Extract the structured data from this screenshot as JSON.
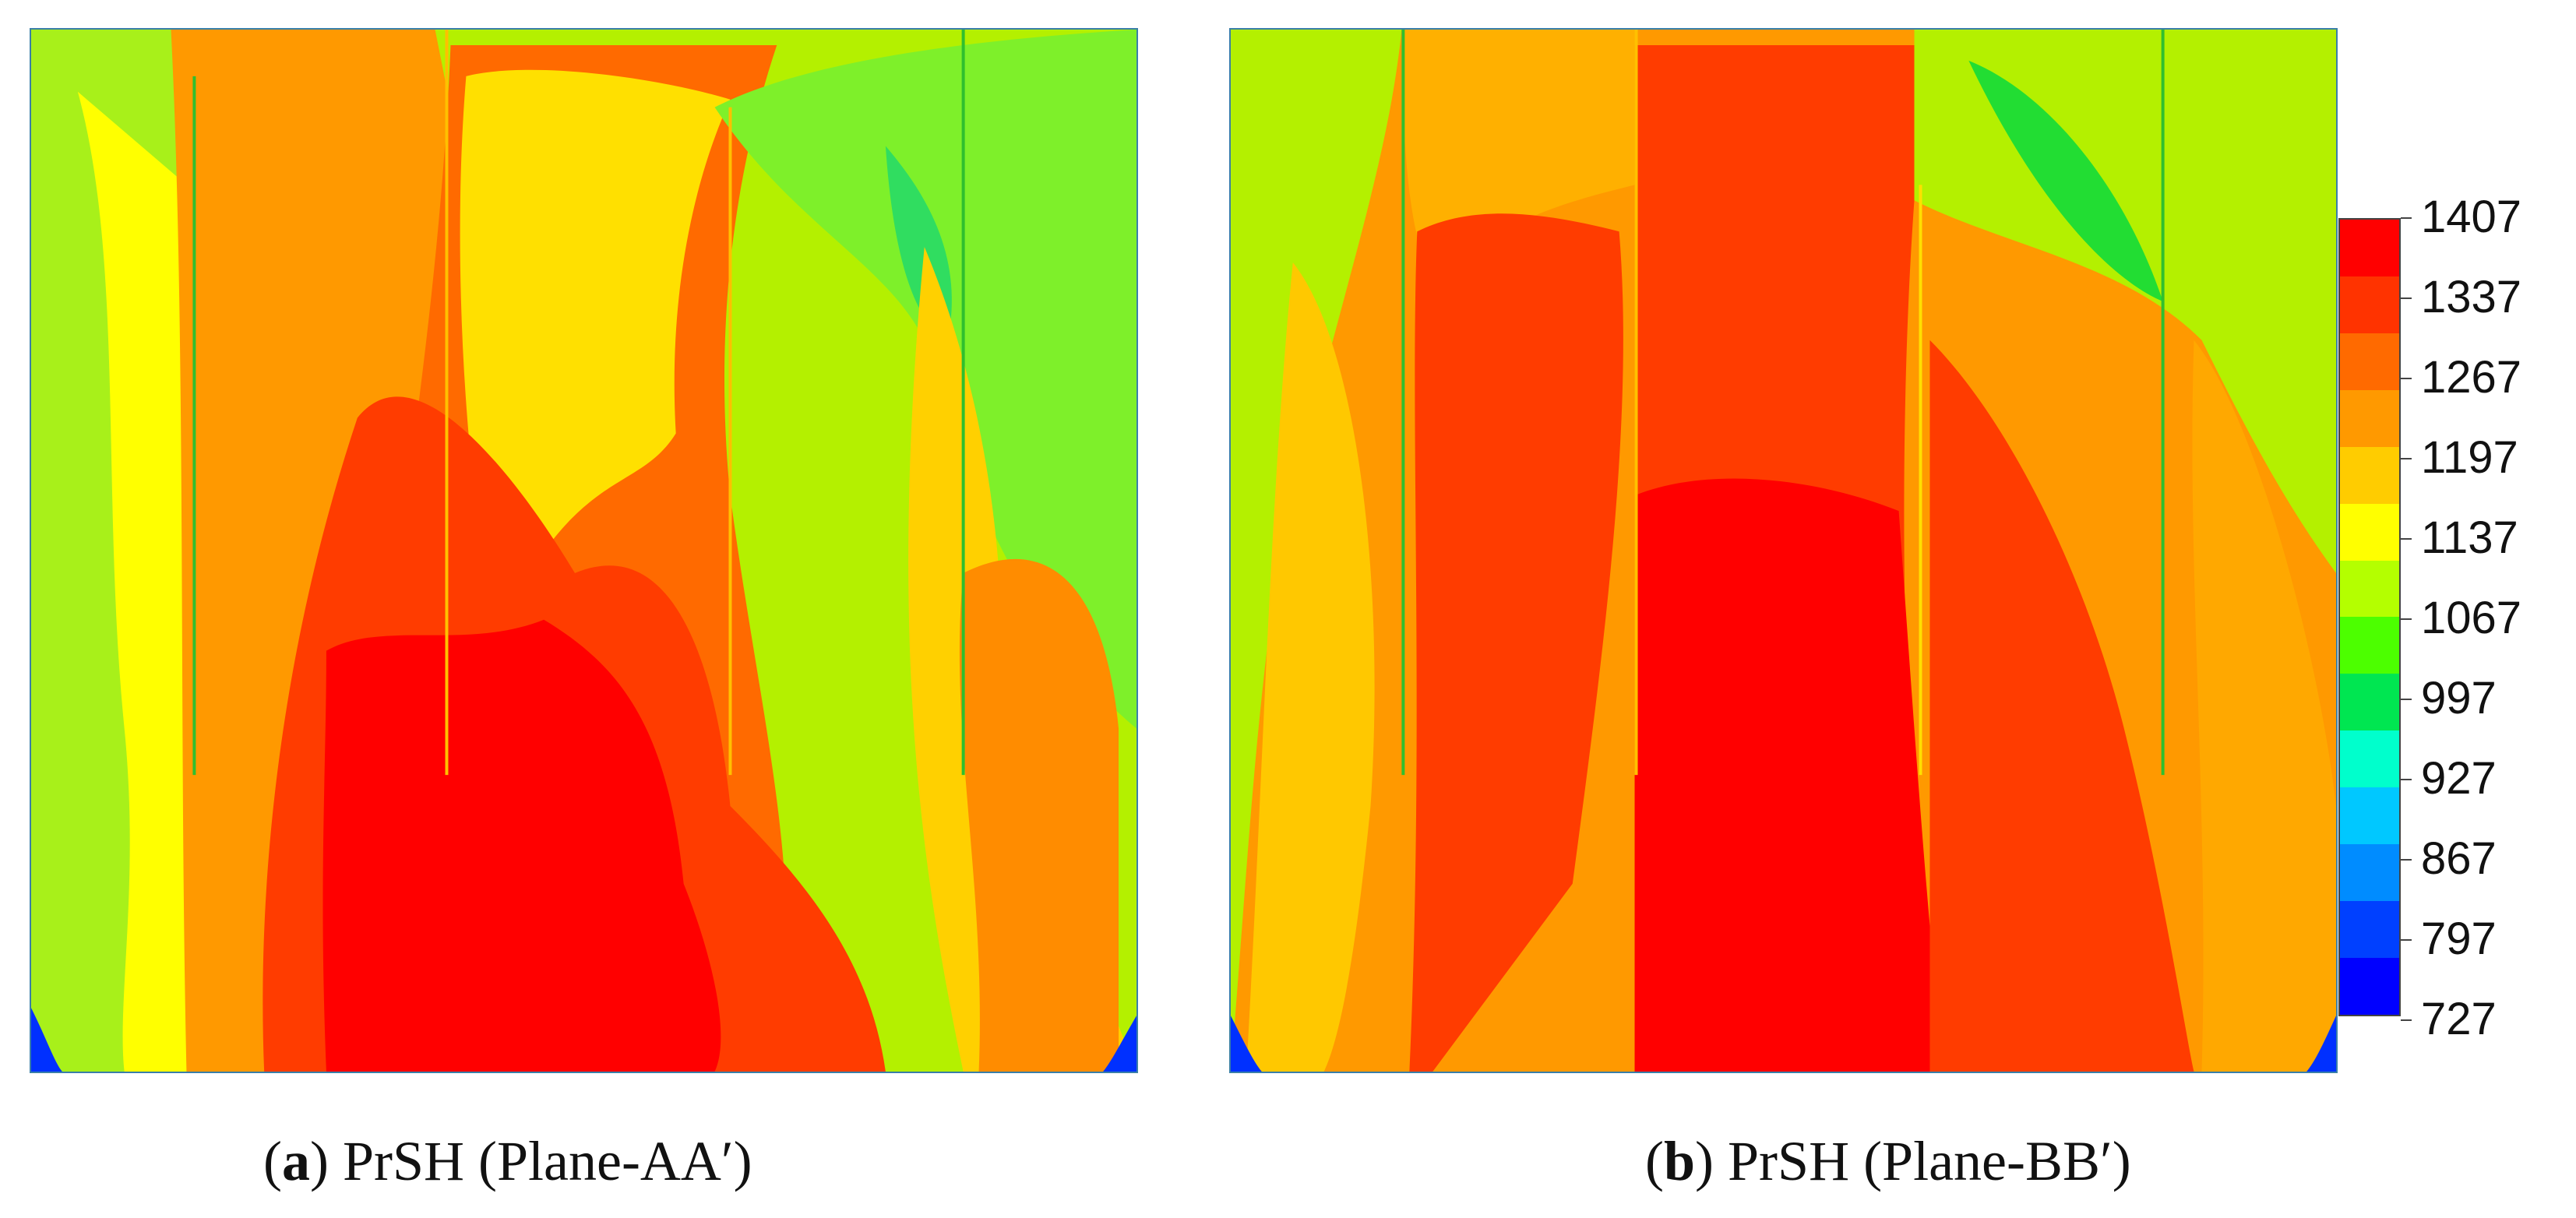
{
  "captions": {
    "a": {
      "letter": "a",
      "text": ") PrSH (Plane-AA′)"
    },
    "b": {
      "letter": "b",
      "text": ") PrSH (Plane-BB′)"
    }
  },
  "legend": {
    "ticks": [
      "1407",
      "1337",
      "1267",
      "1197",
      "1137",
      "1067",
      "997",
      "927",
      "867",
      "797",
      "727"
    ],
    "colors": [
      "#ff0000",
      "#ff3300",
      "#ff6a00",
      "#ff9900",
      "#ffcc00",
      "#ffff00",
      "#b4ff00",
      "#4cff00",
      "#00e651",
      "#00ffcc",
      "#00c8ff",
      "#008cff",
      "#0040ff",
      "#0000ff"
    ]
  },
  "contour_colors": {
    "red": "#ff0000",
    "red_orange": "#ff3c00",
    "orange": "#ff7a00",
    "light_orange": "#ffa800",
    "yellow_orange": "#ffd000",
    "yellow": "#ffff00",
    "lime": "#c8ff00",
    "green": "#4fe82c",
    "bright_green": "#22dd33",
    "cyan": "#00ffcc",
    "blue": "#0030ff"
  }
}
